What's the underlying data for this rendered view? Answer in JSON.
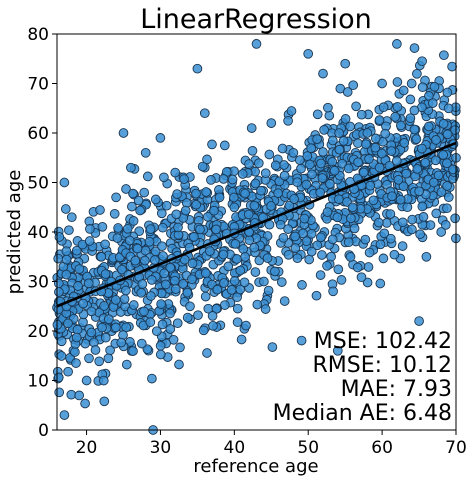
{
  "chart_data": {
    "type": "scatter",
    "title": "LinearRegression",
    "xlabel": "reference age",
    "ylabel": "predicted age",
    "xlim": [
      16,
      70
    ],
    "ylim": [
      0,
      80
    ],
    "xticks": [
      20,
      30,
      40,
      50,
      60,
      70
    ],
    "yticks": [
      0,
      10,
      20,
      30,
      40,
      50,
      60,
      70,
      80
    ],
    "grid": false,
    "point_color": "#3a8fd2",
    "point_edge_color": "#1a3550",
    "line_color": "#000000",
    "regression_line": {
      "x": [
        16,
        70
      ],
      "y": [
        25,
        58
      ]
    },
    "metrics": [
      "MSE: 102.42",
      "RMSE: 10.12",
      "MAE: 7.93",
      "Median AE: 6.48"
    ],
    "points_sample": [
      [
        17,
        50
      ],
      [
        18,
        43
      ],
      [
        17,
        3
      ],
      [
        19,
        7
      ],
      [
        20,
        10
      ],
      [
        22,
        28
      ],
      [
        24,
        47
      ],
      [
        25,
        60
      ],
      [
        26,
        53
      ],
      [
        28,
        56
      ],
      [
        29,
        0
      ],
      [
        30,
        59
      ],
      [
        32,
        52
      ],
      [
        35,
        73
      ],
      [
        36,
        64
      ],
      [
        38,
        47
      ],
      [
        40,
        45
      ],
      [
        42,
        40
      ],
      [
        43,
        78
      ],
      [
        45,
        62
      ],
      [
        48,
        56
      ],
      [
        50,
        76
      ],
      [
        52,
        72
      ],
      [
        54,
        16
      ],
      [
        55,
        74
      ],
      [
        58,
        60
      ],
      [
        60,
        70
      ],
      [
        62,
        78
      ],
      [
        63,
        58
      ],
      [
        64,
        70
      ],
      [
        65,
        22
      ],
      [
        66,
        35
      ],
      [
        67,
        50
      ],
      [
        68,
        40
      ],
      [
        69,
        65
      ],
      [
        70,
        55
      ],
      [
        22,
        35
      ],
      [
        34,
        25
      ],
      [
        44,
        30
      ],
      [
        56,
        45
      ]
    ]
  }
}
